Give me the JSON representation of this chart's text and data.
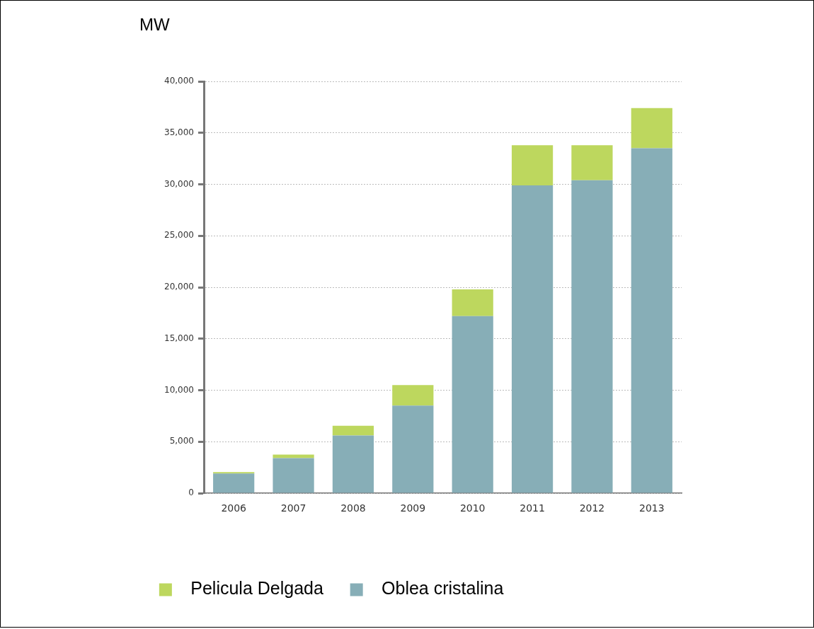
{
  "chart_data": {
    "type": "bar",
    "ylabel": "MW",
    "categories": [
      "2006",
      "2007",
      "2008",
      "2009",
      "2010",
      "2011",
      "2012",
      "2013"
    ],
    "stacked": true,
    "series": [
      {
        "name": "Oblea cristalina",
        "color": "#87aeb7",
        "values": [
          1900,
          3400,
          5600,
          8500,
          17200,
          29900,
          30400,
          33500
        ]
      },
      {
        "name": "Pelicula Delgada",
        "color": "#bdd75e",
        "values": [
          150,
          350,
          950,
          2000,
          2600,
          3900,
          3400,
          3900
        ]
      }
    ],
    "ylim": [
      0,
      40000
    ],
    "yticks": [
      0,
      {
        "value": 5000,
        "label": "5,000"
      },
      {
        "value": 10000,
        "label": "10,000"
      },
      {
        "value": 15000,
        "label": "15,000"
      },
      {
        "value": 20000,
        "label": "20,000"
      },
      {
        "value": 25000,
        "label": "25,000"
      },
      {
        "value": 30000,
        "label": "30,000"
      },
      {
        "value": 35000,
        "label": "35,000"
      },
      {
        "value": 40000,
        "label": "40,000"
      }
    ],
    "grid": "y",
    "legend": "bottom"
  }
}
